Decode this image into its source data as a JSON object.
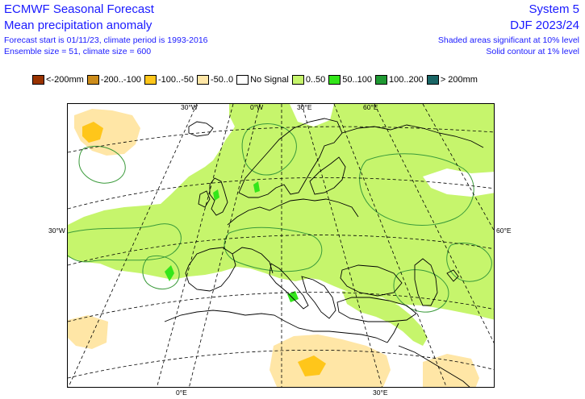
{
  "header": {
    "title": "ECMWF Seasonal Forecast",
    "subtitle": "Mean precipitation anomaly",
    "forecast_info": "Forecast start is 01/11/23, climate period is 1993-2016",
    "ensemble_info": "Ensemble size = 51, climate size = 600",
    "system": "System 5",
    "season": "DJF 2023/24",
    "significance_shaded": "Shaded areas significant at 10% level",
    "significance_contour": "Solid contour at 1% level"
  },
  "legend": [
    {
      "label": "<-200mm",
      "color": "#993300"
    },
    {
      "label": "-200..-100",
      "color": "#cc8c1a"
    },
    {
      "label": "-100..-50",
      "color": "#ffc61a"
    },
    {
      "label": "-50..0",
      "color": "#ffe6a6"
    },
    {
      "label": "No Signal",
      "color": "#ffffff"
    },
    {
      "label": "0..50",
      "color": "#c6f56c"
    },
    {
      "label": "50..100",
      "color": "#33e61a"
    },
    {
      "label": "100..200",
      "color": "#1f9933"
    },
    {
      "label": "> 200mm",
      "color": "#1a6666"
    }
  ],
  "map": {
    "labels": {
      "lon_30w_top": "30°W",
      "lon_0_top": "0°W",
      "lon_30e_top": "30°E",
      "lon_60e_top": "60°E",
      "lon_30w_left": "30°W",
      "lon_60e_right": "60°E",
      "lon_0_bottom": "0°E",
      "lon_30e_bottom": "30°E"
    },
    "colors": {
      "wet": "#c6f56c",
      "wetter": "#33e61a",
      "dry": "#ffe6a6",
      "drier": "#ffc61a",
      "contour": "#3a9a3a",
      "coast": "#000000",
      "grid": "#000000"
    }
  }
}
